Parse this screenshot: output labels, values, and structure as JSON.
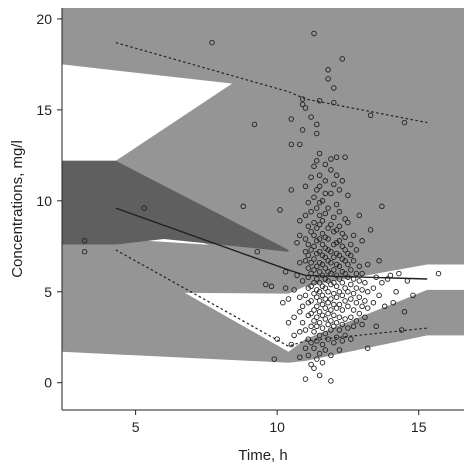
{
  "chart_data": {
    "type": "scatter",
    "title": "",
    "xlabel": "Time, h",
    "ylabel": "Concentrations, mg/l",
    "xlim": [
      2.4,
      16.6
    ],
    "ylim": [
      -1.5,
      20.6
    ],
    "xticks": [
      5,
      10,
      15
    ],
    "yticks": [
      0,
      5,
      10,
      15,
      20
    ],
    "grid": false,
    "legend": "none",
    "colors": {
      "band_light": "#959595",
      "band_dark": "#5f5f5f",
      "marker_stroke": "#222222",
      "line": "#222222",
      "axis": "#222222",
      "background": "#ffffff"
    },
    "bands": [
      {
        "shade": "light",
        "lower": [
          [
            2.4,
            17.5
          ],
          [
            10.4,
            16.1
          ],
          [
            11.0,
            17.0
          ],
          [
            16.6,
            17.8
          ]
        ],
        "upper": [
          [
            2.4,
            20.6
          ],
          [
            16.6,
            20.6
          ]
        ]
      },
      {
        "shade": "light",
        "lower": [
          [
            2.4,
            10.5
          ],
          [
            10.4,
            6.0
          ],
          [
            11.0,
            6.2
          ],
          [
            15.3,
            8.8
          ],
          [
            16.6,
            8.8
          ]
        ],
        "upper": [
          [
            2.4,
            12.2
          ],
          [
            4.3,
            12.2
          ],
          [
            10.4,
            18.5
          ],
          [
            11.0,
            20.6
          ],
          [
            16.6,
            20.6
          ]
        ]
      },
      {
        "shade": "light",
        "lower": [
          [
            2.4,
            5.0
          ],
          [
            10.4,
            4.9
          ],
          [
            11.0,
            5.3
          ],
          [
            15.3,
            6.5
          ],
          [
            16.6,
            6.5
          ]
        ],
        "upper": [
          [
            2.4,
            8.1
          ],
          [
            10.4,
            7.3
          ],
          [
            11.0,
            8.0
          ],
          [
            15.3,
            9.8
          ],
          [
            16.6,
            9.8
          ]
        ]
      },
      {
        "shade": "light",
        "lower": [
          [
            2.4,
            1.7
          ],
          [
            10.4,
            1.1
          ],
          [
            11.0,
            1.2
          ],
          [
            15.3,
            2.6
          ],
          [
            16.6,
            2.6
          ]
        ],
        "upper": [
          [
            2.4,
            7.1
          ],
          [
            4.3,
            7.1
          ],
          [
            10.4,
            1.7
          ],
          [
            11.0,
            2.4
          ],
          [
            15.3,
            5.1
          ],
          [
            16.6,
            5.1
          ]
        ]
      },
      {
        "shade": "dark",
        "lower": [
          [
            2.4,
            7.6
          ],
          [
            4.3,
            7.6
          ],
          [
            6.0,
            7.9
          ],
          [
            10.4,
            7.2
          ]
        ],
        "upper": [
          [
            2.4,
            12.2
          ],
          [
            4.3,
            12.2
          ],
          [
            10.4,
            7.3
          ]
        ]
      },
      {
        "shade": "dark",
        "lower": [
          [
            2.4,
            7.6
          ],
          [
            4.3,
            7.6
          ]
        ],
        "upper": [
          [
            2.4,
            8.1
          ],
          [
            4.3,
            8.1
          ]
        ]
      }
    ],
    "lines": [
      {
        "style": "dotted",
        "points": [
          [
            4.3,
            18.7
          ],
          [
            10.4,
            16.0
          ],
          [
            11.0,
            15.6
          ],
          [
            15.3,
            14.3
          ]
        ]
      },
      {
        "style": "solid",
        "points": [
          [
            4.3,
            9.6
          ],
          [
            10.4,
            6.2
          ],
          [
            11.0,
            5.9
          ],
          [
            15.3,
            5.7
          ]
        ]
      },
      {
        "style": "dotted",
        "points": [
          [
            4.3,
            7.3
          ],
          [
            10.4,
            2.0
          ],
          [
            11.0,
            2.3
          ],
          [
            15.3,
            3.0
          ]
        ]
      }
    ],
    "points": [
      [
        3.2,
        7.8
      ],
      [
        3.2,
        7.2
      ],
      [
        5.3,
        9.6
      ],
      [
        7.7,
        18.7
      ],
      [
        8.8,
        9.7
      ],
      [
        9.2,
        14.2
      ],
      [
        9.3,
        7.2
      ],
      [
        9.6,
        5.4
      ],
      [
        9.8,
        5.3
      ],
      [
        9.9,
        1.3
      ],
      [
        10.0,
        2.4
      ],
      [
        10.1,
        9.5
      ],
      [
        10.2,
        4.4
      ],
      [
        10.3,
        5.2
      ],
      [
        10.3,
        6.1
      ],
      [
        10.4,
        3.3
      ],
      [
        10.4,
        4.6
      ],
      [
        10.5,
        2.1
      ],
      [
        10.5,
        10.6
      ],
      [
        10.5,
        13.1
      ],
      [
        10.5,
        14.5
      ],
      [
        10.6,
        2.6
      ],
      [
        10.6,
        3.6
      ],
      [
        10.6,
        5.1
      ],
      [
        10.7,
        5.9
      ],
      [
        10.7,
        7.7
      ],
      [
        10.8,
        1.4
      ],
      [
        10.8,
        2.8
      ],
      [
        10.8,
        3.9
      ],
      [
        10.8,
        4.7
      ],
      [
        10.8,
        6.6
      ],
      [
        10.8,
        8.1
      ],
      [
        10.8,
        8.9
      ],
      [
        10.8,
        13.1
      ],
      [
        10.9,
        15.3
      ],
      [
        10.9,
        15.6
      ],
      [
        10.9,
        13.9
      ],
      [
        10.9,
        4.2
      ],
      [
        10.9,
        5.6
      ],
      [
        10.9,
        3.3
      ],
      [
        11.0,
        1.9
      ],
      [
        11.0,
        2.9
      ],
      [
        11.0,
        4.8
      ],
      [
        11.0,
        6.7
      ],
      [
        11.0,
        7.2
      ],
      [
        11.0,
        7.9
      ],
      [
        11.0,
        9.2
      ],
      [
        11.0,
        10.8
      ],
      [
        11.0,
        15.1
      ],
      [
        11.0,
        0.2
      ],
      [
        11.1,
        1.5
      ],
      [
        11.1,
        2.4
      ],
      [
        11.1,
        3.7
      ],
      [
        11.1,
        4.4
      ],
      [
        11.1,
        5.2
      ],
      [
        11.1,
        5.8
      ],
      [
        11.1,
        6.3
      ],
      [
        11.1,
        7.0
      ],
      [
        11.1,
        7.6
      ],
      [
        11.1,
        8.6
      ],
      [
        11.1,
        9.9
      ],
      [
        11.2,
        1.0
      ],
      [
        11.2,
        2.2
      ],
      [
        11.2,
        3.1
      ],
      [
        11.2,
        3.8
      ],
      [
        11.2,
        4.5
      ],
      [
        11.2,
        5.3
      ],
      [
        11.2,
        6.0
      ],
      [
        11.2,
        6.6
      ],
      [
        11.2,
        7.3
      ],
      [
        11.2,
        8.3
      ],
      [
        11.2,
        9.4
      ],
      [
        11.2,
        11.3
      ],
      [
        11.2,
        14.6
      ],
      [
        11.3,
        19.2
      ],
      [
        11.3,
        0.8
      ],
      [
        11.3,
        1.9
      ],
      [
        11.3,
        2.8
      ],
      [
        11.3,
        3.4
      ],
      [
        11.3,
        4.0
      ],
      [
        11.3,
        4.9
      ],
      [
        11.3,
        5.5
      ],
      [
        11.3,
        6.2
      ],
      [
        11.3,
        6.8
      ],
      [
        11.3,
        7.5
      ],
      [
        11.3,
        8.1
      ],
      [
        11.3,
        8.8
      ],
      [
        11.3,
        10.2
      ],
      [
        11.3,
        11.9
      ],
      [
        11.4,
        1.3
      ],
      [
        11.4,
        2.3
      ],
      [
        11.4,
        3.1
      ],
      [
        11.4,
        3.6
      ],
      [
        11.4,
        4.2
      ],
      [
        11.4,
        4.7
      ],
      [
        11.4,
        5.1
      ],
      [
        11.4,
        5.7
      ],
      [
        11.4,
        6.4
      ],
      [
        11.4,
        7.1
      ],
      [
        11.4,
        7.8
      ],
      [
        11.4,
        8.5
      ],
      [
        11.4,
        9.6
      ],
      [
        11.4,
        10.6
      ],
      [
        11.4,
        12.2
      ],
      [
        11.4,
        13.7
      ],
      [
        11.4,
        14.2
      ],
      [
        11.5,
        0.4
      ],
      [
        11.5,
        1.6
      ],
      [
        11.5,
        2.6
      ],
      [
        11.5,
        3.3
      ],
      [
        11.5,
        3.9
      ],
      [
        11.5,
        4.5
      ],
      [
        11.5,
        5.0
      ],
      [
        11.5,
        5.5
      ],
      [
        11.5,
        6.1
      ],
      [
        11.5,
        6.6
      ],
      [
        11.5,
        7.2
      ],
      [
        11.5,
        7.9
      ],
      [
        11.5,
        8.7
      ],
      [
        11.5,
        9.2
      ],
      [
        11.5,
        9.9
      ],
      [
        11.5,
        10.8
      ],
      [
        11.5,
        11.4
      ],
      [
        11.5,
        12.6
      ],
      [
        11.5,
        15.5
      ],
      [
        11.6,
        1.1
      ],
      [
        11.6,
        2.1
      ],
      [
        11.6,
        3.0
      ],
      [
        11.6,
        3.7
      ],
      [
        11.6,
        4.3
      ],
      [
        11.6,
        4.8
      ],
      [
        11.6,
        5.3
      ],
      [
        11.6,
        5.9
      ],
      [
        11.6,
        6.5
      ],
      [
        11.6,
        7.0
      ],
      [
        11.6,
        7.6
      ],
      [
        11.6,
        8.2
      ],
      [
        11.6,
        8.9
      ],
      [
        11.6,
        10.0
      ],
      [
        11.7,
        1.8
      ],
      [
        11.7,
        2.7
      ],
      [
        11.7,
        3.5
      ],
      [
        11.7,
        4.1
      ],
      [
        11.7,
        4.6
      ],
      [
        11.7,
        5.2
      ],
      [
        11.7,
        5.7
      ],
      [
        11.7,
        6.3
      ],
      [
        11.7,
        6.9
      ],
      [
        11.7,
        7.4
      ],
      [
        11.7,
        8.0
      ],
      [
        11.7,
        9.3
      ],
      [
        11.7,
        10.4
      ],
      [
        11.7,
        11.1
      ],
      [
        11.7,
        12.0
      ],
      [
        11.8,
        2.4
      ],
      [
        11.8,
        3.2
      ],
      [
        11.8,
        3.8
      ],
      [
        11.8,
        4.4
      ],
      [
        11.8,
        5.0
      ],
      [
        11.8,
        5.6
      ],
      [
        11.8,
        6.1
      ],
      [
        11.8,
        6.7
      ],
      [
        11.8,
        7.3
      ],
      [
        11.8,
        7.9
      ],
      [
        11.8,
        8.5
      ],
      [
        11.8,
        9.6
      ],
      [
        11.8,
        17.2
      ],
      [
        11.8,
        16.7
      ],
      [
        11.9,
        1.5
      ],
      [
        11.9,
        2.9
      ],
      [
        11.9,
        3.4
      ],
      [
        11.9,
        4.0
      ],
      [
        11.9,
        4.6
      ],
      [
        11.9,
        5.4
      ],
      [
        11.9,
        6.0
      ],
      [
        11.9,
        6.6
      ],
      [
        11.9,
        7.2
      ],
      [
        11.9,
        8.7
      ],
      [
        11.9,
        10.4
      ],
      [
        11.9,
        11.7
      ],
      [
        11.9,
        12.3
      ],
      [
        11.9,
        0.1
      ],
      [
        12.0,
        2.2
      ],
      [
        12.0,
        3.1
      ],
      [
        12.0,
        3.7
      ],
      [
        12.0,
        4.3
      ],
      [
        12.0,
        4.9
      ],
      [
        12.0,
        5.5
      ],
      [
        12.0,
        6.2
      ],
      [
        12.0,
        6.9
      ],
      [
        12.0,
        7.6
      ],
      [
        12.0,
        8.3
      ],
      [
        12.0,
        9.1
      ],
      [
        12.0,
        10.9
      ],
      [
        12.0,
        15.4
      ],
      [
        12.0,
        16.2
      ],
      [
        12.1,
        2.5
      ],
      [
        12.1,
        3.3
      ],
      [
        12.1,
        4.1
      ],
      [
        12.1,
        4.7
      ],
      [
        12.1,
        5.3
      ],
      [
        12.1,
        5.9
      ],
      [
        12.1,
        6.5
      ],
      [
        12.1,
        7.1
      ],
      [
        12.1,
        7.7
      ],
      [
        12.1,
        8.4
      ],
      [
        12.1,
        9.8
      ],
      [
        12.1,
        11.4
      ],
      [
        12.1,
        12.4
      ],
      [
        12.2,
        1.8
      ],
      [
        12.2,
        2.9
      ],
      [
        12.2,
        3.6
      ],
      [
        12.2,
        4.3
      ],
      [
        12.2,
        5.0
      ],
      [
        12.2,
        5.7
      ],
      [
        12.2,
        6.4
      ],
      [
        12.2,
        7.0
      ],
      [
        12.2,
        7.8
      ],
      [
        12.2,
        8.6
      ],
      [
        12.2,
        9.4
      ],
      [
        12.2,
        10.6
      ],
      [
        12.3,
        2.3
      ],
      [
        12.3,
        3.2
      ],
      [
        12.3,
        4.0
      ],
      [
        12.3,
        4.8
      ],
      [
        12.3,
        5.5
      ],
      [
        12.3,
        6.1
      ],
      [
        12.3,
        6.8
      ],
      [
        12.3,
        7.5
      ],
      [
        12.3,
        8.2
      ],
      [
        12.3,
        11.1
      ],
      [
        12.3,
        17.8
      ],
      [
        12.4,
        2.6
      ],
      [
        12.4,
        3.5
      ],
      [
        12.4,
        4.5
      ],
      [
        12.4,
        5.2
      ],
      [
        12.4,
        6.0
      ],
      [
        12.4,
        6.7
      ],
      [
        12.4,
        7.3
      ],
      [
        12.4,
        8.0
      ],
      [
        12.4,
        9.0
      ],
      [
        12.4,
        12.4
      ],
      [
        12.5,
        3.0
      ],
      [
        12.5,
        4.2
      ],
      [
        12.5,
        5.0
      ],
      [
        12.5,
        5.8
      ],
      [
        12.5,
        6.5
      ],
      [
        12.5,
        7.1
      ],
      [
        12.5,
        8.8
      ],
      [
        12.5,
        10.3
      ],
      [
        12.6,
        2.4
      ],
      [
        12.6,
        3.6
      ],
      [
        12.6,
        4.6
      ],
      [
        12.6,
        5.4
      ],
      [
        12.6,
        6.2
      ],
      [
        12.6,
        7.0
      ],
      [
        12.6,
        7.6
      ],
      [
        12.7,
        3.1
      ],
      [
        12.7,
        4.0
      ],
      [
        12.7,
        4.9
      ],
      [
        12.7,
        5.7
      ],
      [
        12.7,
        6.7
      ],
      [
        12.7,
        8.1
      ],
      [
        12.8,
        3.4
      ],
      [
        12.8,
        4.4
      ],
      [
        12.8,
        5.2
      ],
      [
        12.8,
        6.0
      ],
      [
        12.8,
        7.3
      ],
      [
        12.9,
        3.8
      ],
      [
        12.9,
        4.7
      ],
      [
        12.9,
        5.6
      ],
      [
        12.9,
        6.4
      ],
      [
        12.9,
        9.2
      ],
      [
        13.0,
        3.2
      ],
      [
        13.0,
        4.2
      ],
      [
        13.0,
        5.1
      ],
      [
        13.0,
        6.0
      ],
      [
        13.0,
        7.8
      ],
      [
        13.1,
        3.6
      ],
      [
        13.1,
        4.5
      ],
      [
        13.1,
        5.5
      ],
      [
        13.2,
        1.9
      ],
      [
        13.2,
        4.1
      ],
      [
        13.2,
        5.0
      ],
      [
        13.2,
        6.5
      ],
      [
        13.3,
        14.7
      ],
      [
        13.3,
        8.4
      ],
      [
        13.4,
        5.2
      ],
      [
        13.4,
        4.4
      ],
      [
        13.5,
        3.1
      ],
      [
        13.5,
        5.8
      ],
      [
        13.6,
        6.7
      ],
      [
        13.6,
        4.8
      ],
      [
        13.7,
        9.7
      ],
      [
        13.7,
        5.5
      ],
      [
        13.8,
        4.2
      ],
      [
        13.9,
        5.7
      ],
      [
        14.0,
        5.9
      ],
      [
        14.1,
        4.4
      ],
      [
        14.2,
        5.0
      ],
      [
        14.3,
        6.0
      ],
      [
        14.4,
        2.9
      ],
      [
        14.5,
        14.3
      ],
      [
        14.5,
        3.9
      ],
      [
        14.6,
        5.6
      ],
      [
        14.8,
        4.8
      ],
      [
        15.7,
        6.0
      ]
    ]
  }
}
